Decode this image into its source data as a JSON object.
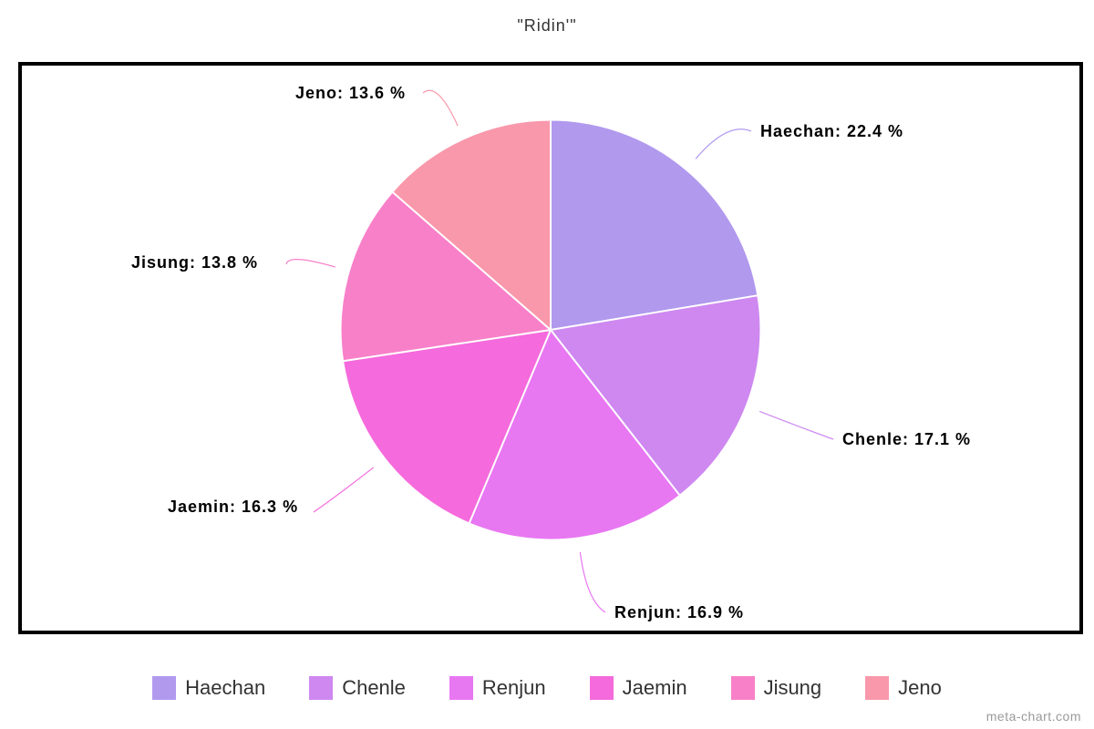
{
  "chart": {
    "type": "pie",
    "title": "\"Ridin'\"",
    "title_fontsize": 18,
    "background_color": "#ffffff",
    "border_color": "#000000",
    "border_width": 4,
    "pie_radius": 240,
    "slice_gap_color": "#ffffff",
    "slice_gap_width": 2,
    "label_fontsize": 18,
    "label_fontweight": "bold",
    "legend_fontsize": 22,
    "slices": [
      {
        "name": "Haechan",
        "value": 22.4,
        "color": "#b199ee",
        "label": "Haechan: 22.4 %"
      },
      {
        "name": "Chenle",
        "value": 17.1,
        "color": "#ce88f0",
        "label": "Chenle: 17.1 %"
      },
      {
        "name": "Renjun",
        "value": 16.9,
        "color": "#e877f2",
        "label": "Renjun: 16.9 %"
      },
      {
        "name": "Jaemin",
        "value": 16.3,
        "color": "#f56adc",
        "label": "Jaemin: 16.3 %"
      },
      {
        "name": "Jisung",
        "value": 13.8,
        "color": "#f880c9",
        "label": "Jisung: 13.8 %"
      },
      {
        "name": "Jeno",
        "value": 13.6,
        "color": "#f998ab",
        "label": "Jeno: 13.6 %"
      }
    ],
    "credit": "meta-chart.com"
  }
}
